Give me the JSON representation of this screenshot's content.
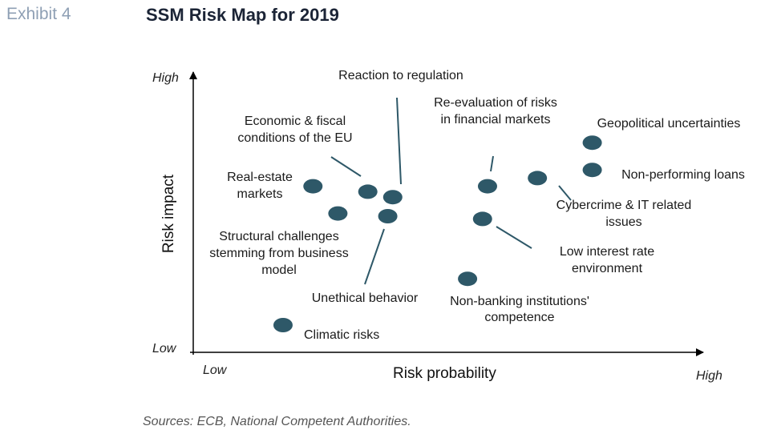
{
  "header": {
    "exhibit": "Exhibit 4",
    "title": "SSM Risk Map for 2019"
  },
  "footer": {
    "source": "Sources: ECB, National Competent Authorities."
  },
  "colors": {
    "marker": "#2e5868",
    "axis": "#000000",
    "leader": "#2e5868"
  },
  "chart_data": {
    "type": "scatter",
    "title": "SSM Risk Map for 2019",
    "xlabel": "Risk probability",
    "ylabel": "Risk impact",
    "x_ticks": {
      "low": "Low",
      "high": "High"
    },
    "y_ticks": {
      "low": "Low",
      "high": "High"
    },
    "xlim": [
      0,
      100
    ],
    "ylim": [
      0,
      100
    ],
    "grid": false,
    "points": [
      {
        "label": "Real-estate markets",
        "x": 24,
        "y": 61
      },
      {
        "label": "Economic & fiscal conditions of the EU",
        "x": 35,
        "y": 59
      },
      {
        "label": "Reaction to regulation",
        "x": 40,
        "y": 57
      },
      {
        "label": "Structural challenges stemming from business model",
        "x": 29,
        "y": 51
      },
      {
        "label": "Unethical behavior",
        "x": 39,
        "y": 50
      },
      {
        "label": "Re-evaluation of risks in financial markets",
        "x": 59,
        "y": 61
      },
      {
        "label": "Low interest rate environment",
        "x": 58,
        "y": 49
      },
      {
        "label": "Cybercrime & IT related issues",
        "x": 69,
        "y": 64
      },
      {
        "label": "Geopolitical uncertainties",
        "x": 80,
        "y": 77
      },
      {
        "label": "Non-performing loans",
        "x": 80,
        "y": 67
      },
      {
        "label": "Non-banking institutions' competence",
        "x": 55,
        "y": 27
      },
      {
        "label": "Climatic risks",
        "x": 18,
        "y": 10
      }
    ]
  }
}
